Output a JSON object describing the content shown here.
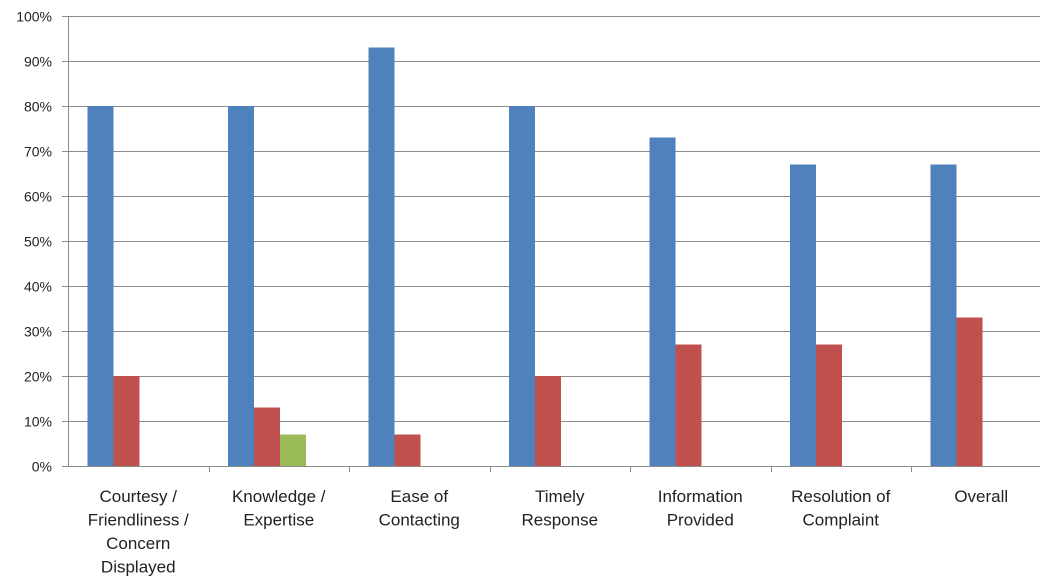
{
  "chart_data": {
    "type": "bar",
    "categories": [
      [
        "Courtesy /",
        "Friendliness /",
        "Concern",
        "Displayed"
      ],
      [
        "Knowledge /",
        "Expertise"
      ],
      [
        "Ease of",
        "Contacting"
      ],
      [
        "Timely",
        "Response"
      ],
      [
        "Information",
        "Provided"
      ],
      [
        "Resolution of",
        "Complaint"
      ],
      [
        "Overall"
      ]
    ],
    "series": [
      {
        "color": "#4f81bd",
        "values": [
          80,
          80,
          93,
          80,
          73,
          67,
          67
        ]
      },
      {
        "color": "#c0504d",
        "values": [
          20,
          13,
          7,
          20,
          27,
          27,
          33
        ]
      },
      {
        "color": "#9bbb59",
        "values": [
          0,
          7,
          0,
          0,
          0,
          0,
          0
        ]
      }
    ],
    "yticks": [
      "0%",
      "10%",
      "20%",
      "30%",
      "40%",
      "50%",
      "60%",
      "70%",
      "80%",
      "90%",
      "100%"
    ],
    "ylim": [
      0,
      100
    ],
    "grid": true,
    "legend": "none"
  }
}
